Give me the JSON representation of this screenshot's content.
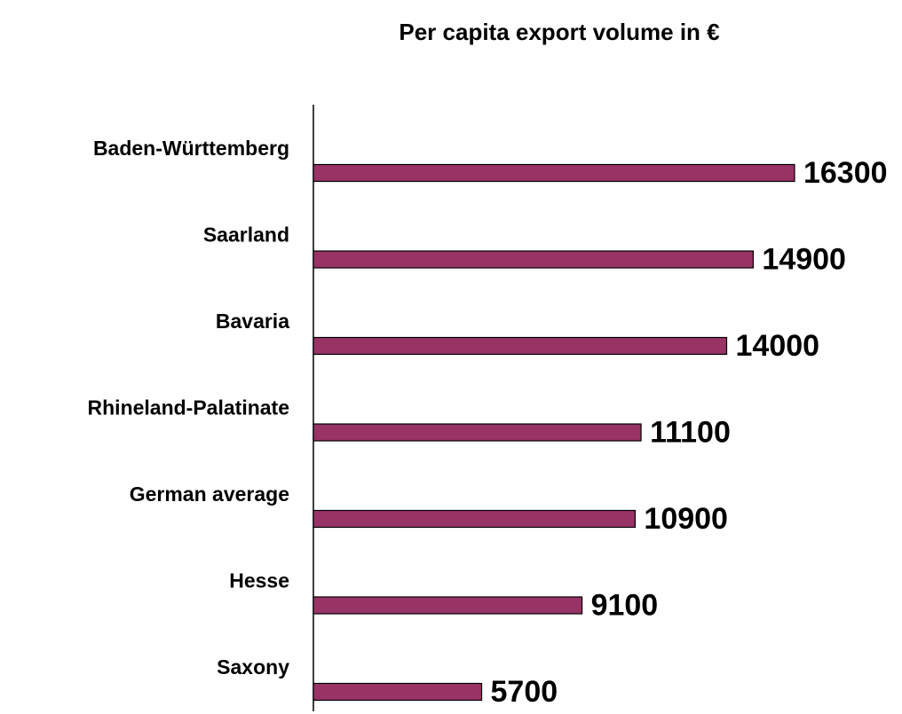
{
  "chart_data": {
    "type": "bar",
    "orientation": "horizontal",
    "title": "Per capita export volume in €",
    "categories": [
      "Baden-Württemberg",
      "Saarland",
      "Bavaria",
      "Rhineland-Palatinate",
      "German average",
      "Hesse",
      "Saxony"
    ],
    "values": [
      16300,
      14900,
      14000,
      11100,
      10900,
      9100,
      5700
    ],
    "color": "#993366"
  }
}
